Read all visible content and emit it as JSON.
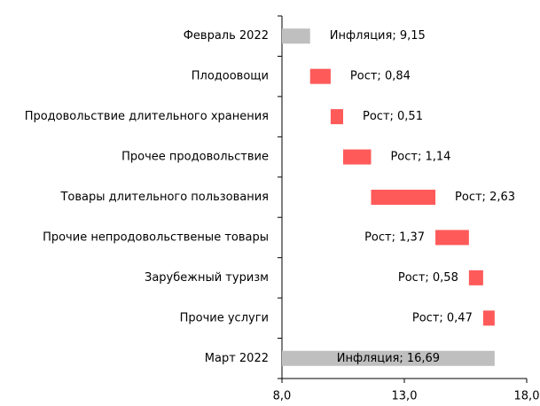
{
  "chart_data": {
    "type": "waterfall",
    "categories": [
      "Февраль 2022",
      "Плодоовощи",
      "Продовольствие длительного хранения",
      "Прочее продовольствие",
      "Товары длительного пользования",
      "Прочие непродовольственые товары",
      "Зарубежный туризм",
      "Прочие услуги",
      "Март 2022"
    ],
    "measures": [
      "total",
      "increase",
      "increase",
      "increase",
      "increase",
      "increase",
      "increase",
      "increase",
      "total"
    ],
    "values": [
      9.15,
      0.84,
      0.51,
      1.14,
      2.63,
      1.37,
      0.58,
      0.47,
      16.69
    ],
    "value_labels": [
      "Инфляция; 9,15",
      "Рост; 0,84",
      "Рост; 0,51",
      "Рост; 1,14",
      "Рост; 2,63",
      "Рост; 1,37",
      "Рост; 0,58",
      "Рост; 0,47",
      "Инфляция; 16,69"
    ],
    "total_color": "#bfbfbf",
    "increase_color": "#ff5a5a",
    "xlim": [
      8.0,
      18.0
    ],
    "xticks": [
      {
        "value": 8.0,
        "label": "8,0"
      },
      {
        "value": 13.0,
        "label": "13,0"
      },
      {
        "value": 18.0,
        "label": "18,0"
      }
    ]
  }
}
